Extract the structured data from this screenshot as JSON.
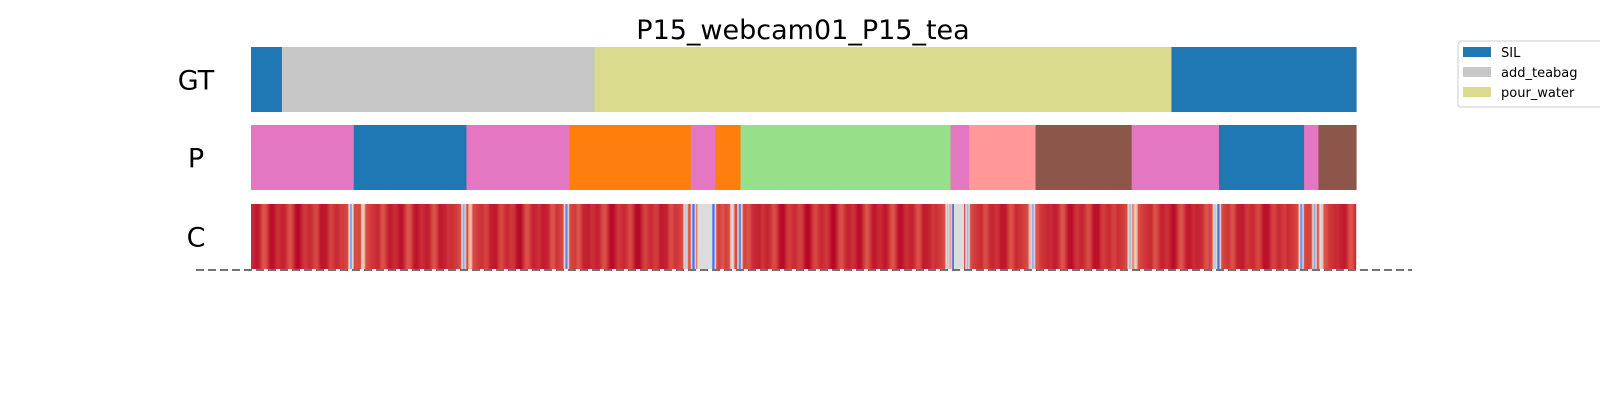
{
  "chart_data": {
    "type": "segmentation",
    "title": "P15_webcam01_P15_tea",
    "x_range": [
      0,
      1
    ],
    "rows": [
      {
        "label": "GT",
        "segments": [
          {
            "start": 0.0,
            "end": 0.028,
            "action": "SIL"
          },
          {
            "start": 0.028,
            "end": 0.311,
            "action": "add_teabag"
          },
          {
            "start": 0.311,
            "end": 0.833,
            "action": "pour_water"
          },
          {
            "start": 0.833,
            "end": 1.0,
            "action": "SIL"
          }
        ]
      },
      {
        "label": "P",
        "segments": [
          {
            "start": 0.0,
            "end": 0.093,
            "color": "#e377c2"
          },
          {
            "start": 0.093,
            "end": 0.195,
            "color": "#1f77b4"
          },
          {
            "start": 0.195,
            "end": 0.288,
            "color": "#e377c2"
          },
          {
            "start": 0.288,
            "end": 0.398,
            "color": "#ff7f0e"
          },
          {
            "start": 0.398,
            "end": 0.42,
            "color": "#e377c2"
          },
          {
            "start": 0.42,
            "end": 0.443,
            "color": "#ff7f0e"
          },
          {
            "start": 0.443,
            "end": 0.633,
            "color": "#98df8a"
          },
          {
            "start": 0.633,
            "end": 0.65,
            "color": "#e377c2"
          },
          {
            "start": 0.65,
            "end": 0.71,
            "color": "#ff9896"
          },
          {
            "start": 0.71,
            "end": 0.797,
            "color": "#8c564b"
          },
          {
            "start": 0.797,
            "end": 0.876,
            "color": "#e377c2"
          },
          {
            "start": 0.876,
            "end": 0.953,
            "color": "#1f77b4"
          },
          {
            "start": 0.953,
            "end": 0.966,
            "color": "#e377c2"
          },
          {
            "start": 0.966,
            "end": 1.0,
            "color": "#8c564b"
          }
        ]
      },
      {
        "label": "C",
        "colormap": "coolwarm",
        "confidence_dips": [
          {
            "at": 0.09,
            "value": 0.25
          },
          {
            "at": 0.101,
            "value": 0.55
          },
          {
            "at": 0.192,
            "value": 0.3
          },
          {
            "at": 0.198,
            "value": 0.6
          },
          {
            "at": 0.285,
            "value": 0.15
          },
          {
            "at": 0.393,
            "value": 0.4
          },
          {
            "at": 0.4,
            "value": 0.1
          },
          {
            "at": 0.405,
            "value": 0.5
          },
          {
            "at": 0.418,
            "value": 0.1
          },
          {
            "at": 0.435,
            "value": 0.5
          },
          {
            "at": 0.442,
            "value": 0.15
          },
          {
            "at": 0.63,
            "value": 0.4
          },
          {
            "at": 0.635,
            "value": 0.1
          },
          {
            "at": 0.648,
            "value": 0.35
          },
          {
            "at": 0.705,
            "value": 0.6
          },
          {
            "at": 0.707,
            "value": 0.3
          },
          {
            "at": 0.795,
            "value": 0.35
          },
          {
            "at": 0.8,
            "value": 0.55
          },
          {
            "at": 0.872,
            "value": 0.4
          },
          {
            "at": 0.875,
            "value": 0.1
          },
          {
            "at": 0.95,
            "value": 0.2
          },
          {
            "at": 0.962,
            "value": 0.3
          },
          {
            "at": 0.968,
            "value": 0.45
          }
        ],
        "gray_spans": [
          {
            "start": 0.404,
            "end": 0.417
          },
          {
            "start": 0.636,
            "end": 0.645
          }
        ]
      }
    ],
    "legend": {
      "position": "top-right",
      "entries": [
        {
          "label": "SIL",
          "color": "#1f77b4"
        },
        {
          "label": "add_teabag",
          "color": "#c7c7c7"
        },
        {
          "label": "pour_water",
          "color": "#dbdb8d"
        }
      ]
    },
    "baseline": "dashed"
  }
}
